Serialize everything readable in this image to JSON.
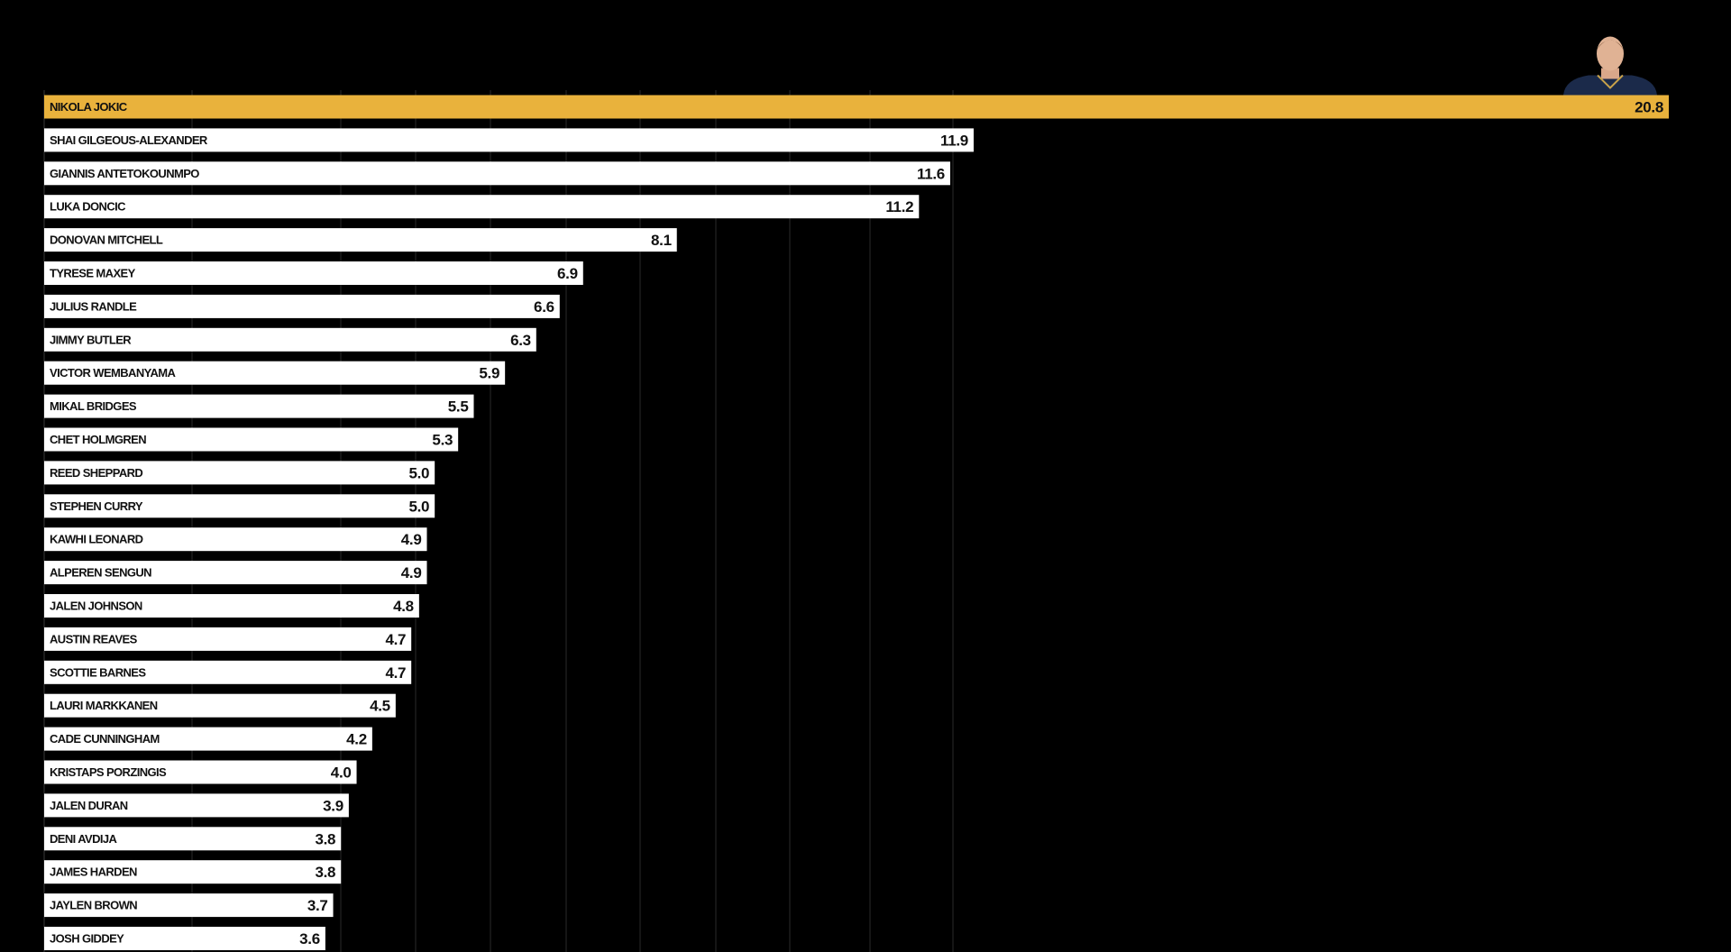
{
  "colors": {
    "background": "#000000",
    "bar_default": "#ffffff",
    "bar_highlight": "#e9b23c",
    "text": "#111111",
    "gridline": "#2a2a2a"
  },
  "chart_data": {
    "type": "bar",
    "orientation": "horizontal",
    "title": "",
    "xlabel": "",
    "ylabel": "",
    "xlim": [
      0,
      20.8
    ],
    "grid": true,
    "legend": "none",
    "highlight_index": 0,
    "highlight_icon": "player-headshot-icon",
    "categories": [
      "NIKOLA JOKIC",
      "SHAI GILGEOUS-ALEXANDER",
      "GIANNIS ANTETOKOUNMPO",
      "LUKA DONCIC",
      "DONOVAN MITCHELL",
      "TYRESE MAXEY",
      "JULIUS RANDLE",
      "JIMMY BUTLER",
      "VICTOR WEMBANYAMA",
      "MIKAL BRIDGES",
      "CHET HOLMGREN",
      "REED SHEPPARD",
      "STEPHEN CURRY",
      "KAWHI LEONARD",
      "ALPEREN SENGUN",
      "JALEN JOHNSON",
      "AUSTIN REAVES",
      "SCOTTIE BARNES",
      "LAURI MARKKANEN",
      "CADE CUNNINGHAM",
      "KRISTAPS PORZINGIS",
      "JALEN DURAN",
      "DENI AVDIJA",
      "JAMES HARDEN",
      "JAYLEN BROWN",
      "JOSH GIDDEY"
    ],
    "values": [
      20.8,
      11.9,
      11.6,
      11.2,
      8.1,
      6.9,
      6.6,
      6.3,
      5.9,
      5.5,
      5.3,
      5.0,
      5.0,
      4.9,
      4.9,
      4.8,
      4.7,
      4.7,
      4.5,
      4.2,
      4.0,
      3.9,
      3.8,
      3.8,
      3.7,
      3.6
    ],
    "value_labels": [
      "20.8",
      "11.9",
      "11.6",
      "11.2",
      "8.1",
      "6.9",
      "6.6",
      "6.3",
      "5.9",
      "5.5",
      "5.3",
      "5.0",
      "5.0",
      "4.9",
      "4.9",
      "4.8",
      "4.7",
      "4.7",
      "4.5",
      "4.2",
      "4.0",
      "3.9",
      "3.8",
      "3.8",
      "3.7",
      "3.6"
    ]
  }
}
